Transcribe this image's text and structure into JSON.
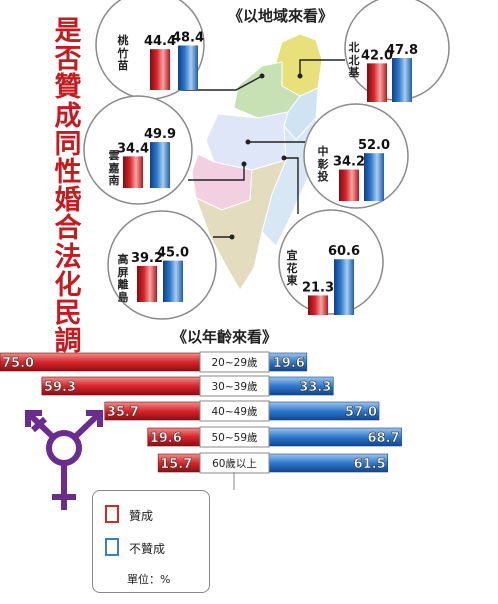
{
  "side_title": [
    "是",
    "否",
    "贊",
    "成",
    "同",
    "性",
    "婚",
    "合",
    "法",
    "化",
    "民",
    "調"
  ],
  "legend": {
    "support": "贊成",
    "oppose": "不贊成",
    "unit": "單位：%"
  },
  "colors": {
    "support": "#c8191f",
    "oppose": "#1f66b8",
    "title": "#c8191f",
    "symbol": "#6b2c91"
  },
  "chart_data": [
    {
      "type": "bar",
      "title": "《以地域來看》",
      "series_labels": [
        "贊成",
        "不贊成"
      ],
      "regions": [
        {
          "name": "桃竹苗",
          "name_chars": [
            "桃",
            "竹",
            "苗"
          ],
          "support": 44.4,
          "oppose": 48.4,
          "support_label": "44.4",
          "oppose_label": "48.4"
        },
        {
          "name": "北北基",
          "name_chars": [
            "北",
            "北",
            "基"
          ],
          "support": 42.0,
          "oppose": 47.8,
          "support_label": "42.0",
          "oppose_label": "47.8"
        },
        {
          "name": "雲嘉南",
          "name_chars": [
            "雲",
            "嘉",
            "南"
          ],
          "support": 34.4,
          "oppose": 49.9,
          "support_label": "34.4",
          "oppose_label": "49.9"
        },
        {
          "name": "中彰投",
          "name_chars": [
            "中",
            "彰",
            "投"
          ],
          "support": 34.2,
          "oppose": 52.0,
          "support_label": "34.2",
          "oppose_label": "52.0"
        },
        {
          "name": "高屏離島",
          "name_chars": [
            "高",
            "屏",
            "離",
            "島"
          ],
          "support": 39.2,
          "oppose": 45.0,
          "support_label": "39.2",
          "oppose_label": "45.0"
        },
        {
          "name": "宜花東",
          "name_chars": [
            "宜",
            "花",
            "東"
          ],
          "support": 21.3,
          "oppose": 60.6,
          "support_label": "21.3",
          "oppose_label": "60.6"
        }
      ]
    },
    {
      "type": "bar",
      "orientation": "horizontal-diverging",
      "title": "《以年齡來看》",
      "series_labels": [
        "贊成",
        "不贊成"
      ],
      "groups": [
        {
          "name": "20~29歲",
          "support": 75.0,
          "oppose": 19.6,
          "support_label": "75.0",
          "oppose_label": "19.6"
        },
        {
          "name": "30~39歲",
          "support": 59.3,
          "oppose": 33.3,
          "support_label": "59.3",
          "oppose_label": "33.3"
        },
        {
          "name": "40~49歲",
          "support": 35.7,
          "oppose": 57.0,
          "support_label": "35.7",
          "oppose_label": "57.0"
        },
        {
          "name": "50~59歲",
          "support": 19.6,
          "oppose": 68.7,
          "support_label": "19.6",
          "oppose_label": "68.7"
        },
        {
          "name": "60歲以上",
          "support": 15.7,
          "oppose": 61.5,
          "support_label": "15.7",
          "oppose_label": "61.5"
        }
      ]
    }
  ]
}
